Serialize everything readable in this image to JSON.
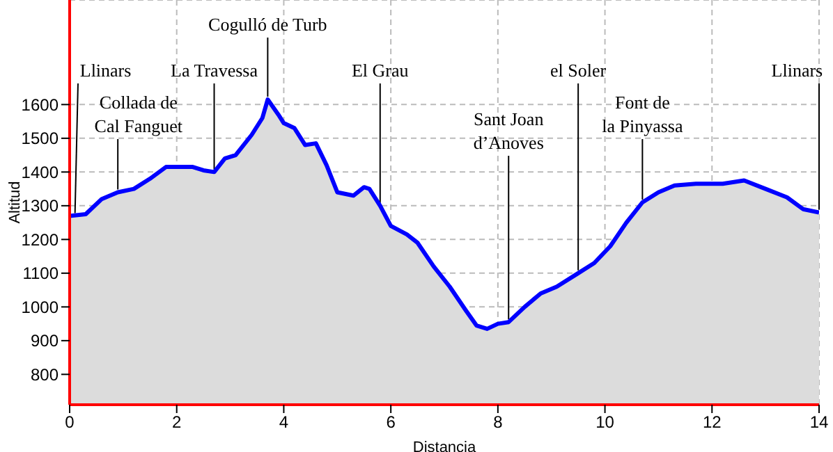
{
  "chart_data": {
    "type": "area",
    "xlabel": "Distancia",
    "ylabel": "Altitud",
    "color": "#0000ff",
    "x": [
      0,
      0.3,
      0.6,
      0.9,
      1.2,
      1.5,
      1.8,
      2.3,
      2.5,
      2.7,
      2.9,
      3.1,
      3.4,
      3.6,
      3.7,
      3.9,
      4.0,
      4.2,
      4.4,
      4.6,
      4.8,
      5.0,
      5.3,
      5.5,
      5.6,
      5.8,
      6.0,
      6.3,
      6.5,
      6.8,
      7.1,
      7.4,
      7.6,
      7.8,
      8.0,
      8.2,
      8.5,
      8.8,
      9.1,
      9.5,
      9.8,
      10.1,
      10.4,
      10.7,
      11.0,
      11.3,
      11.7,
      12.2,
      12.6,
      13.0,
      13.4,
      13.7,
      14
    ],
    "values": [
      1270,
      1275,
      1320,
      1340,
      1350,
      1380,
      1415,
      1415,
      1405,
      1400,
      1440,
      1450,
      1510,
      1560,
      1615,
      1570,
      1545,
      1530,
      1480,
      1485,
      1420,
      1340,
      1330,
      1355,
      1350,
      1300,
      1240,
      1215,
      1190,
      1120,
      1060,
      990,
      945,
      935,
      950,
      955,
      1000,
      1040,
      1060,
      1100,
      1130,
      1180,
      1250,
      1310,
      1340,
      1360,
      1365,
      1365,
      1375,
      1350,
      1325,
      1290,
      1280
    ],
    "xlim": [
      0,
      14
    ],
    "xticks": [
      0,
      2,
      4,
      6,
      8,
      10,
      12,
      14
    ],
    "ylim": [
      710,
      1910
    ],
    "yticks": [
      800,
      900,
      1000,
      1100,
      1200,
      1300,
      1400,
      1500,
      1600
    ],
    "grid": true,
    "annotations": [
      {
        "text": "Llinars",
        "x": 0.1,
        "y": 1270
      },
      {
        "text": "Collada de\nCal Fanguet",
        "x": 0.9,
        "y": 1340
      },
      {
        "text": "La Travessa",
        "x": 2.7,
        "y": 1400
      },
      {
        "text": "Cogulló de Turb",
        "x": 3.7,
        "y": 1615
      },
      {
        "text": "El Grau",
        "x": 5.8,
        "y": 1300
      },
      {
        "text": "Sant Joan\nd’Anoves",
        "x": 8.2,
        "y": 955
      },
      {
        "text": "el Soler",
        "x": 9.5,
        "y": 1100
      },
      {
        "text": "Font de\nla Pinyassa",
        "x": 10.7,
        "y": 1310
      },
      {
        "text": "Llinars",
        "x": 14,
        "y": 1280
      }
    ]
  }
}
